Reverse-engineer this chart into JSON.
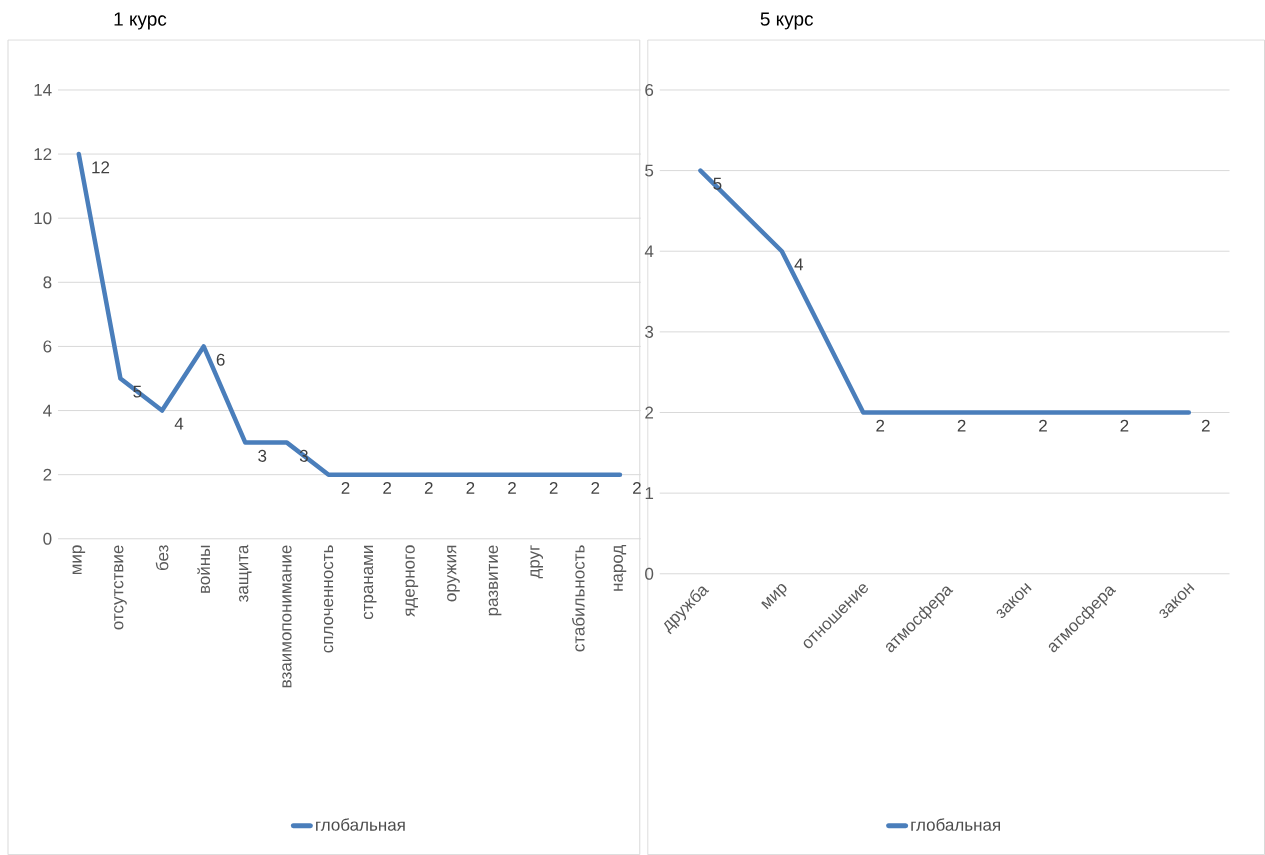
{
  "chart_data": [
    {
      "type": "line",
      "title": "1 курс",
      "categories": [
        "мир",
        "отсутствие",
        "без",
        "войны",
        "защита",
        "взаимопонимание",
        "сплоченность",
        "странами",
        "ядерного",
        "оружия",
        "развитие",
        "друг",
        "стабильность",
        "народ"
      ],
      "series": [
        {
          "name": "глобальная",
          "color": "#4a7ebb",
          "values": [
            12,
            5,
            4,
            6,
            3,
            3,
            2,
            2,
            2,
            2,
            2,
            2,
            2,
            2
          ]
        }
      ],
      "ylim": [
        0,
        14
      ],
      "yticks": [
        0,
        2,
        4,
        6,
        8,
        10,
        12,
        14
      ],
      "grid": "y",
      "legend": "bottom",
      "data_labels": true,
      "marker": "none"
    },
    {
      "type": "line",
      "title": "5 курс",
      "categories": [
        "дружба",
        "мир",
        "отношение",
        "атмосфера",
        "закон",
        "атмосфера",
        "закон"
      ],
      "series": [
        {
          "name": "глобальная",
          "color": "#4a7ebb",
          "values": [
            5,
            4,
            2,
            2,
            2,
            2,
            2
          ]
        }
      ],
      "ylim": [
        0,
        6
      ],
      "yticks": [
        0,
        1,
        2,
        3,
        4,
        5,
        6
      ],
      "grid": "y",
      "legend": "bottom",
      "data_labels": true,
      "marker": "none"
    }
  ]
}
